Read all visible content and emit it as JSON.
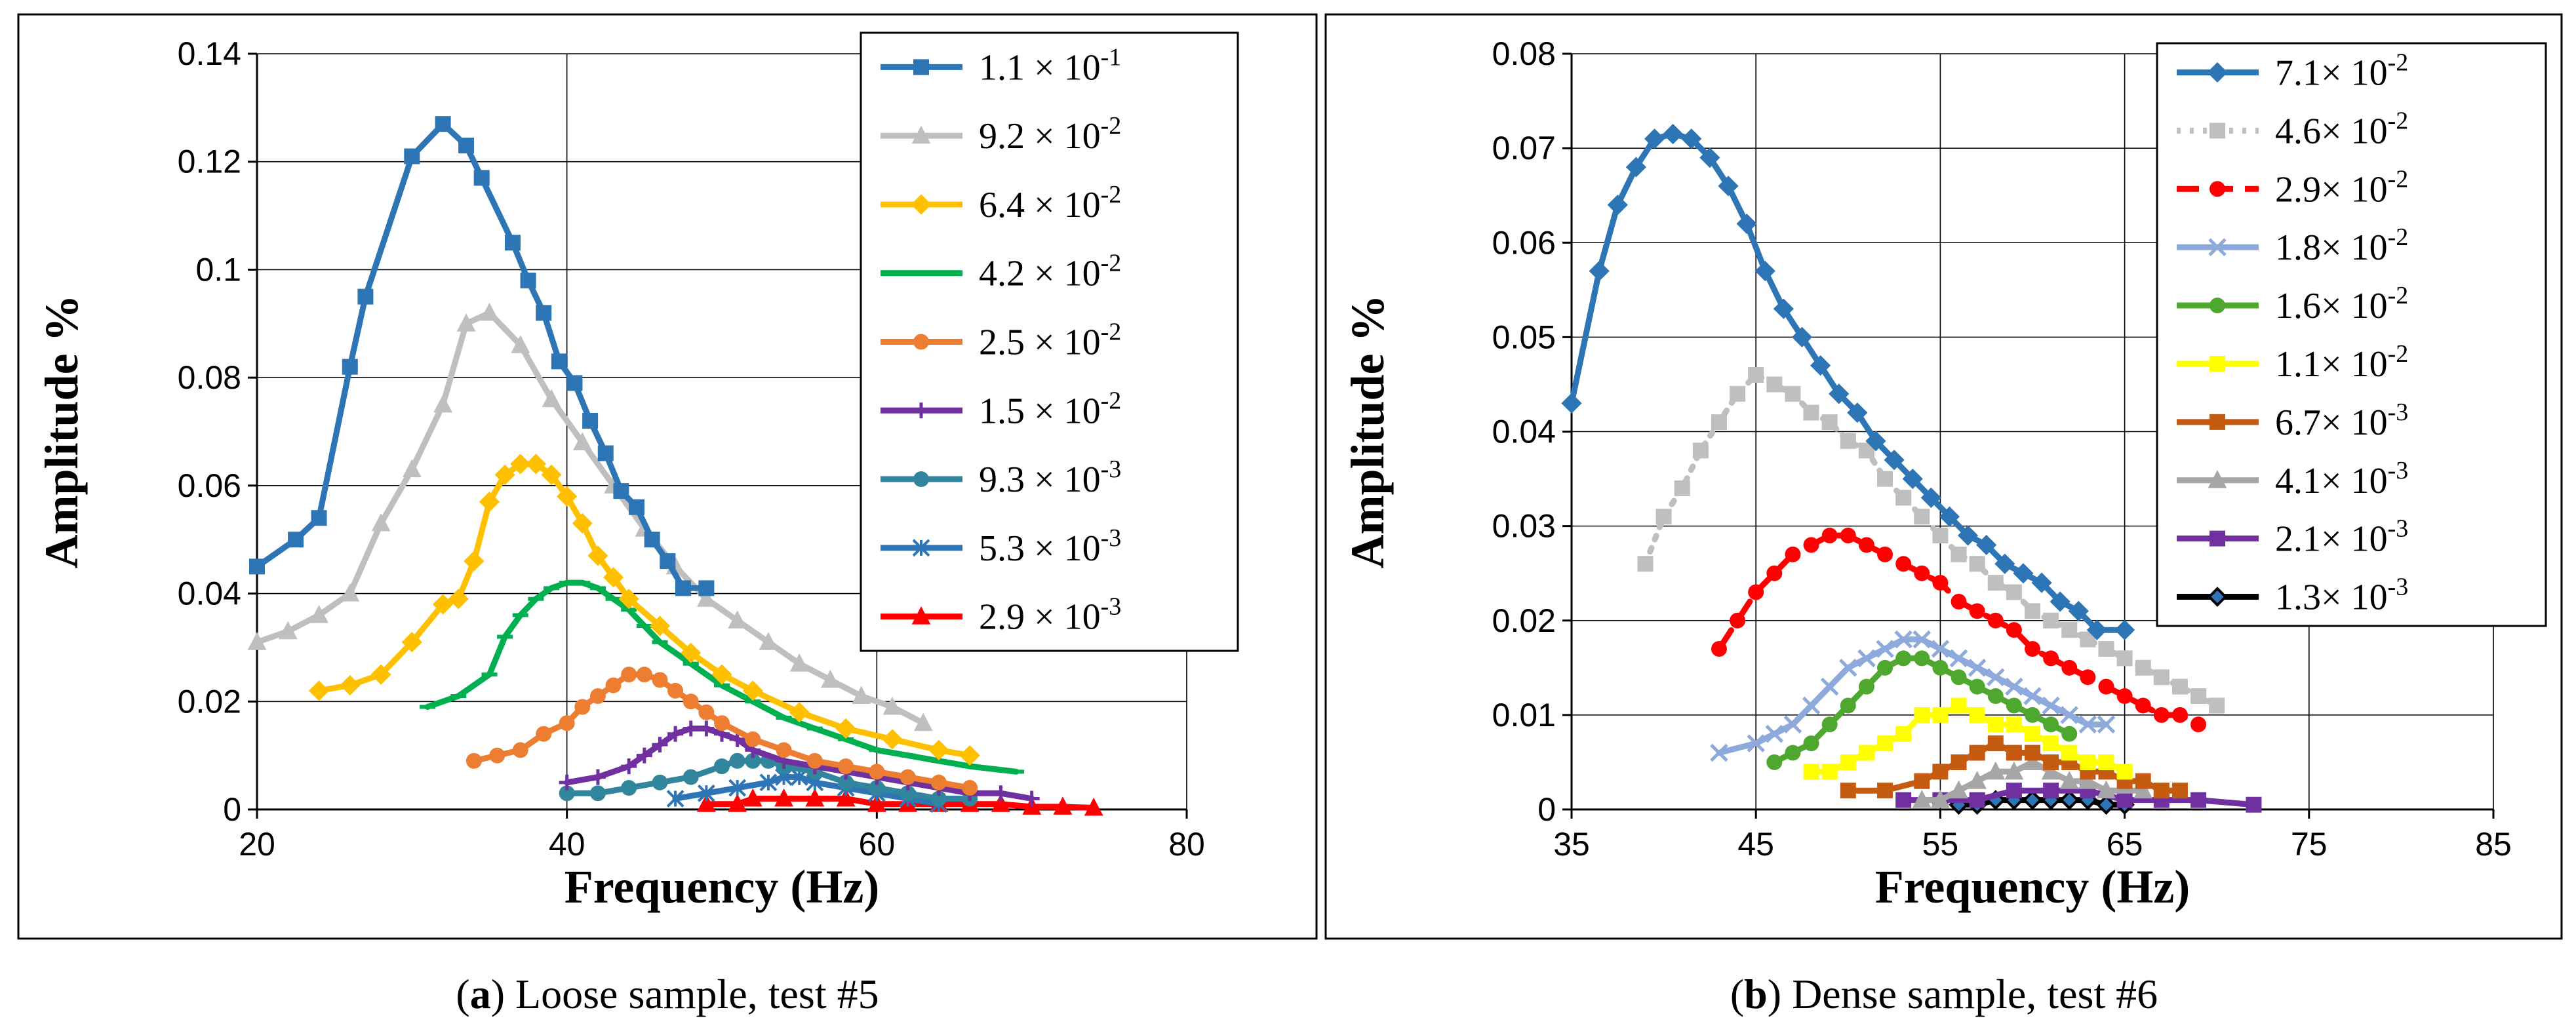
{
  "chart_data": [
    {
      "type": "line",
      "caption": {
        "letter": "a",
        "text": "Loose sample, test #5"
      },
      "xlabel": "Frequency (Hz)",
      "ylabel": "Amplitude %",
      "xlim": [
        20,
        80
      ],
      "ylim": [
        0,
        0.14
      ],
      "xticks": [
        "20",
        "40",
        "60",
        "80"
      ],
      "yticks": [
        "0",
        "0.02",
        "0.04",
        "0.06",
        "0.08",
        "0.1",
        "0.12",
        "0.14"
      ],
      "grid": true,
      "legend_position": "top-right",
      "series": [
        {
          "name": "1.1 × 10-1",
          "base": "1.1 × 10",
          "exp": "-1",
          "color": "#2E75B6",
          "marker": "square",
          "dash": "solid",
          "x": [
            20,
            22.5,
            24,
            26,
            27,
            30,
            32,
            33.5,
            34.5,
            36.5,
            37.5,
            38.5,
            39.5,
            40.5,
            41.5,
            42.5,
            43.5,
            44.5,
            45.5,
            46.5,
            47.5,
            49
          ],
          "y": [
            0.045,
            0.05,
            0.054,
            0.082,
            0.095,
            0.121,
            0.127,
            0.123,
            0.117,
            0.105,
            0.098,
            0.092,
            0.083,
            0.079,
            0.072,
            0.066,
            0.059,
            0.056,
            0.05,
            0.046,
            0.041,
            0.041
          ]
        },
        {
          "name": "9.2 × 10-2",
          "base": "9.2 × 10",
          "exp": "-2",
          "color": "#BFBFBF",
          "marker": "triangle",
          "dash": "solid",
          "x": [
            20,
            22,
            24,
            26,
            28,
            30,
            32,
            33.5,
            35,
            37,
            39,
            41,
            43,
            45,
            47,
            49,
            51,
            53,
            55,
            57,
            59,
            61,
            63
          ],
          "y": [
            0.031,
            0.033,
            0.036,
            0.04,
            0.053,
            0.063,
            0.075,
            0.09,
            0.092,
            0.086,
            0.076,
            0.068,
            0.06,
            0.052,
            0.045,
            0.039,
            0.035,
            0.031,
            0.027,
            0.024,
            0.021,
            0.019,
            0.016
          ]
        },
        {
          "name": "6.4 × 10-2",
          "base": "6.4 × 10",
          "exp": "-2",
          "color": "#FFC000",
          "marker": "diamond",
          "dash": "solid",
          "x": [
            24,
            26,
            28,
            30,
            32,
            33,
            34,
            35,
            36,
            37,
            38,
            39,
            40,
            41,
            42,
            43,
            44,
            46,
            48,
            50,
            52,
            55,
            58,
            61,
            64,
            66
          ],
          "y": [
            0.022,
            0.023,
            0.025,
            0.031,
            0.038,
            0.039,
            0.046,
            0.057,
            0.062,
            0.064,
            0.064,
            0.062,
            0.058,
            0.053,
            0.047,
            0.043,
            0.039,
            0.034,
            0.029,
            0.025,
            0.022,
            0.018,
            0.015,
            0.013,
            0.011,
            0.01
          ]
        },
        {
          "name": "4.2 × 10-2",
          "base": "4.2 × 10",
          "exp": "-2",
          "color": "#00B050",
          "marker": "dash",
          "dash": "solid",
          "x": [
            31,
            33,
            35,
            36,
            37,
            38,
            39,
            40,
            41,
            42,
            43,
            44,
            45,
            46,
            48,
            50,
            52,
            54,
            56,
            58,
            60,
            62,
            64,
            66,
            69
          ],
          "y": [
            0.019,
            0.021,
            0.025,
            0.032,
            0.036,
            0.039,
            0.041,
            0.042,
            0.042,
            0.041,
            0.039,
            0.037,
            0.034,
            0.031,
            0.027,
            0.023,
            0.02,
            0.017,
            0.015,
            0.013,
            0.011,
            0.01,
            0.009,
            0.008,
            0.007
          ]
        },
        {
          "name": "2.5 × 10-2",
          "base": "2.5 × 10",
          "exp": "-2",
          "color": "#ED7D31",
          "marker": "circle",
          "dash": "solid",
          "x": [
            34,
            35.5,
            37,
            38.5,
            40,
            41,
            42,
            43,
            44,
            45,
            46,
            47,
            48,
            49,
            50,
            52,
            54,
            56,
            58,
            60,
            62,
            64,
            66
          ],
          "y": [
            0.009,
            0.01,
            0.011,
            0.014,
            0.016,
            0.019,
            0.021,
            0.023,
            0.025,
            0.025,
            0.024,
            0.022,
            0.02,
            0.018,
            0.016,
            0.013,
            0.011,
            0.009,
            0.008,
            0.007,
            0.006,
            0.005,
            0.004
          ]
        },
        {
          "name": "1.5 × 10-2",
          "base": "1.5 × 10",
          "exp": "-2",
          "color": "#7030A0",
          "marker": "plus",
          "dash": "solid",
          "x": [
            40,
            42,
            44,
            45,
            46,
            47,
            48,
            49,
            50,
            51,
            52,
            54,
            56,
            58,
            60,
            62,
            64,
            66,
            68,
            70
          ],
          "y": [
            0.005,
            0.006,
            0.008,
            0.01,
            0.012,
            0.014,
            0.015,
            0.015,
            0.014,
            0.013,
            0.011,
            0.009,
            0.008,
            0.007,
            0.006,
            0.005,
            0.004,
            0.003,
            0.003,
            0.002
          ]
        },
        {
          "name": "9.3 × 10-3",
          "base": "9.3 × 10",
          "exp": "-3",
          "color": "#31859C",
          "marker": "circle",
          "dash": "solid",
          "x": [
            40,
            42,
            44,
            46,
            48,
            50,
            51,
            52,
            53,
            54,
            56,
            58,
            60,
            62,
            64,
            66
          ],
          "y": [
            0.003,
            0.003,
            0.004,
            0.005,
            0.006,
            0.008,
            0.009,
            0.009,
            0.009,
            0.008,
            0.007,
            0.005,
            0.004,
            0.003,
            0.002,
            0.002
          ]
        },
        {
          "name": "5.3 × 10-3",
          "base": "5.3 × 10",
          "exp": "-3",
          "color": "#2E75B6",
          "marker": "star",
          "dash": "solid",
          "x": [
            47,
            49,
            51,
            53,
            54,
            55,
            56,
            58,
            60,
            62,
            64
          ],
          "y": [
            0.002,
            0.003,
            0.004,
            0.005,
            0.006,
            0.006,
            0.005,
            0.004,
            0.003,
            0.002,
            0.001
          ]
        },
        {
          "name": "2.9 × 10-3",
          "base": "2.9 × 10",
          "exp": "-3",
          "color": "#FF0000",
          "marker": "triangle",
          "dash": "solid",
          "x": [
            49,
            51,
            52,
            54,
            56,
            58,
            60,
            62,
            64,
            66,
            68,
            70,
            72,
            74
          ],
          "y": [
            0.001,
            0.001,
            0.002,
            0.002,
            0.002,
            0.002,
            0.001,
            0.001,
            0.001,
            0.001,
            0.001,
            0.0005,
            0.0005,
            0.0003
          ]
        }
      ]
    },
    {
      "type": "line",
      "caption": {
        "letter": "b",
        "text": "Dense sample, test #6"
      },
      "xlabel": "Frequency (Hz)",
      "ylabel": "Amplitude %",
      "xlim": [
        35,
        85
      ],
      "ylim": [
        0,
        0.08
      ],
      "xticks": [
        "35",
        "45",
        "55",
        "65",
        "75",
        "85"
      ],
      "yticks": [
        "0",
        "0.01",
        "0.02",
        "0.03",
        "0.04",
        "0.05",
        "0.06",
        "0.07",
        "0.08"
      ],
      "grid": true,
      "legend_position": "top-right",
      "series": [
        {
          "name": "7.1× 10-2",
          "base": "7.1× 10",
          "exp": "-2",
          "color": "#2E75B6",
          "marker": "diamond",
          "dash": "solid",
          "x": [
            35,
            36.5,
            37.5,
            38.5,
            39.5,
            40.5,
            41.5,
            42.5,
            43.5,
            44.5,
            45.5,
            46.5,
            47.5,
            48.5,
            49.5,
            50.5,
            51.5,
            52.5,
            53.5,
            54.5,
            55.5,
            56.5,
            57.5,
            58.5,
            59.5,
            60.5,
            61.5,
            62.5,
            63.5,
            65
          ],
          "y": [
            0.043,
            0.057,
            0.064,
            0.068,
            0.071,
            0.0715,
            0.071,
            0.069,
            0.066,
            0.062,
            0.057,
            0.053,
            0.05,
            0.047,
            0.044,
            0.042,
            0.039,
            0.037,
            0.035,
            0.033,
            0.031,
            0.029,
            0.028,
            0.026,
            0.025,
            0.024,
            0.022,
            0.021,
            0.019,
            0.019
          ]
        },
        {
          "name": "4.6× 10-2",
          "base": "4.6× 10",
          "exp": "-2",
          "color": "#BFBFBF",
          "marker": "square",
          "dash": "dot",
          "x": [
            39,
            40,
            41,
            42,
            43,
            44,
            45,
            46,
            47,
            48,
            49,
            50,
            51,
            52,
            53,
            54,
            55,
            56,
            57,
            58,
            59,
            60,
            61,
            62,
            63,
            64,
            65,
            66,
            67,
            68,
            69,
            70
          ],
          "y": [
            0.026,
            0.031,
            0.034,
            0.038,
            0.041,
            0.044,
            0.046,
            0.045,
            0.044,
            0.042,
            0.041,
            0.039,
            0.038,
            0.035,
            0.033,
            0.031,
            0.029,
            0.027,
            0.026,
            0.024,
            0.023,
            0.021,
            0.02,
            0.019,
            0.018,
            0.017,
            0.016,
            0.015,
            0.014,
            0.013,
            0.012,
            0.011
          ]
        },
        {
          "name": "2.9× 10-2",
          "base": "2.9× 10",
          "exp": "-2",
          "color": "#FF0000",
          "marker": "circle",
          "dash": "dash",
          "x": [
            43,
            44,
            45,
            46,
            47,
            48,
            49,
            50,
            51,
            52,
            53,
            54,
            55,
            56,
            57,
            58,
            59,
            60,
            61,
            62,
            63,
            64,
            65,
            66,
            67,
            68,
            69
          ],
          "y": [
            0.017,
            0.02,
            0.023,
            0.025,
            0.027,
            0.028,
            0.029,
            0.029,
            0.028,
            0.027,
            0.026,
            0.025,
            0.024,
            0.022,
            0.021,
            0.02,
            0.019,
            0.017,
            0.016,
            0.015,
            0.014,
            0.013,
            0.012,
            0.011,
            0.01,
            0.01,
            0.009
          ]
        },
        {
          "name": "1.8× 10-2",
          "base": "1.8× 10",
          "exp": "-2",
          "color": "#8EA9DB",
          "marker": "x",
          "dash": "solid",
          "x": [
            43,
            45,
            46,
            47,
            48,
            49,
            50,
            51,
            52,
            53,
            54,
            55,
            56,
            57,
            58,
            59,
            60,
            61,
            62,
            63,
            64
          ],
          "y": [
            0.006,
            0.007,
            0.008,
            0.009,
            0.011,
            0.013,
            0.015,
            0.016,
            0.017,
            0.018,
            0.018,
            0.017,
            0.016,
            0.015,
            0.014,
            0.013,
            0.012,
            0.011,
            0.01,
            0.009,
            0.009
          ]
        },
        {
          "name": "1.6× 10-2",
          "base": "1.6× 10",
          "exp": "-2",
          "color": "#4EA72E",
          "marker": "circle",
          "dash": "solid",
          "x": [
            46,
            47,
            48,
            49,
            50,
            51,
            52,
            53,
            54,
            55,
            56,
            57,
            58,
            59,
            60,
            61,
            62
          ],
          "y": [
            0.005,
            0.006,
            0.007,
            0.009,
            0.011,
            0.013,
            0.015,
            0.016,
            0.016,
            0.015,
            0.014,
            0.013,
            0.012,
            0.011,
            0.01,
            0.009,
            0.008
          ]
        },
        {
          "name": "1.1× 10-2",
          "base": "1.1× 10",
          "exp": "-2",
          "color": "#FFFF00",
          "marker": "square",
          "dash": "solid",
          "x": [
            48,
            49,
            50,
            51,
            52,
            53,
            54,
            55,
            56,
            57,
            58,
            59,
            60,
            61,
            62,
            63,
            64,
            65
          ],
          "y": [
            0.004,
            0.004,
            0.005,
            0.006,
            0.007,
            0.008,
            0.01,
            0.01,
            0.011,
            0.01,
            0.009,
            0.009,
            0.008,
            0.007,
            0.006,
            0.005,
            0.005,
            0.004
          ]
        },
        {
          "name": "6.7× 10-3",
          "base": "6.7× 10",
          "exp": "-3",
          "color": "#C55A11",
          "marker": "square",
          "dash": "solid",
          "x": [
            50,
            52,
            54,
            55,
            56,
            57,
            58,
            59,
            60,
            61,
            62,
            63,
            64,
            65,
            66,
            67,
            68
          ],
          "y": [
            0.002,
            0.002,
            0.003,
            0.004,
            0.005,
            0.006,
            0.007,
            0.006,
            0.006,
            0.005,
            0.005,
            0.004,
            0.004,
            0.003,
            0.003,
            0.002,
            0.002
          ]
        },
        {
          "name": "4.1× 10-3",
          "base": "4.1× 10",
          "exp": "-3",
          "color": "#A6A6A6",
          "marker": "triangle",
          "dash": "solid",
          "x": [
            54,
            55,
            56,
            57,
            58,
            59,
            60,
            61,
            62,
            63,
            64,
            66
          ],
          "y": [
            0.001,
            0.001,
            0.002,
            0.003,
            0.004,
            0.004,
            0.005,
            0.004,
            0.003,
            0.003,
            0.002,
            0.002
          ]
        },
        {
          "name": "2.1× 10-3",
          "base": "2.1× 10",
          "exp": "-3",
          "color": "#7030A0",
          "marker": "square",
          "dash": "solid",
          "x": [
            53,
            55,
            57,
            59,
            61,
            63,
            65,
            67,
            69,
            72
          ],
          "y": [
            0.001,
            0.001,
            0.001,
            0.002,
            0.002,
            0.002,
            0.001,
            0.001,
            0.001,
            0.0005
          ]
        },
        {
          "name": "1.3× 10-3",
          "base": "1.3× 10",
          "exp": "-3",
          "color": "#000000",
          "marker": "diamond-open",
          "dash": "solid",
          "x": [
            56,
            57,
            58,
            59,
            60,
            61,
            62,
            63,
            64,
            65
          ],
          "y": [
            0.0005,
            0.0005,
            0.001,
            0.001,
            0.001,
            0.001,
            0.001,
            0.001,
            0.0005,
            0.0005
          ]
        }
      ]
    }
  ]
}
